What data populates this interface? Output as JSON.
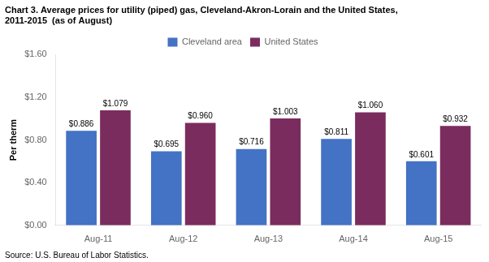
{
  "chart_data": {
    "type": "bar",
    "title": "Chart 3. Average prices for utility (piped) gas, Cleveland-Akron-Lorain and the United States,\n2011-2015  (as of August)",
    "ylabel": "Per therm",
    "source": "Source: U.S. Bureau of Labor Statistics.",
    "categories": [
      "Aug-11",
      "Aug-12",
      "Aug-13",
      "Aug-14",
      "Aug-15"
    ],
    "series": [
      {
        "name": "Cleveland area",
        "color": "#4472C4",
        "values": [
          0.886,
          0.695,
          0.716,
          0.811,
          0.601
        ],
        "value_labels": [
          "$0.886",
          "$0.695",
          "$0.716",
          "$0.811",
          "$0.601"
        ]
      },
      {
        "name": "United States",
        "color": "#7B2C5E",
        "values": [
          1.079,
          0.96,
          1.003,
          1.06,
          0.932
        ],
        "value_labels": [
          "$1.079",
          "$0.960",
          "$1.003",
          "$1.060",
          "$0.932"
        ]
      }
    ],
    "ylim": [
      0.0,
      1.6
    ],
    "yticks": [
      {
        "value": 0.0,
        "label": "$0.00"
      },
      {
        "value": 0.4,
        "label": "$0.40"
      },
      {
        "value": 0.8,
        "label": "$0.80"
      },
      {
        "value": 1.2,
        "label": "$1.20"
      },
      {
        "value": 1.6,
        "label": "$1.60"
      }
    ],
    "grid": false,
    "legend": "top",
    "data_labels": true
  }
}
